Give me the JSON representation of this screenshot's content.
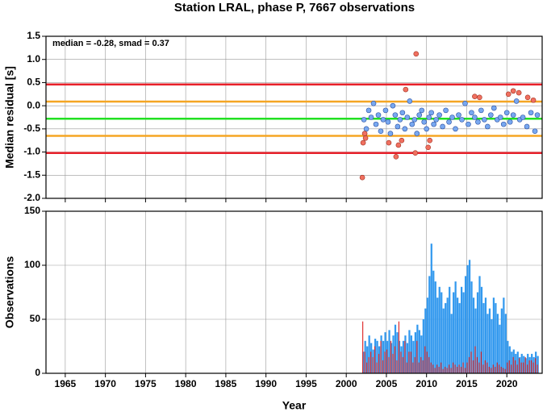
{
  "chart_data": [
    {
      "type": "scatter",
      "title": "Station LRAL, phase P, 7667 observations",
      "ylabel": "Median residual [s]",
      "annotation": "median = -0.28, smad = 0.37",
      "xlim": [
        1962.6,
        2024.4
      ],
      "xticks": [
        1965,
        1970,
        1975,
        1980,
        1985,
        1990,
        1995,
        2000,
        2005,
        2010,
        2015,
        2020
      ],
      "ylim": [
        -2,
        1.5
      ],
      "yticks": [
        {
          "value": -2,
          "label": "-2.0"
        },
        -1.5,
        {
          "value": -1,
          "label": "-1.0"
        },
        -0.5,
        {
          "value": 0,
          "label": "0.0"
        },
        0.5,
        {
          "value": 1,
          "label": "1.0"
        },
        1.5
      ],
      "grid": true,
      "lines": [
        {
          "value": 0.46,
          "color": "#e8202a"
        },
        {
          "value": 0.09,
          "color": "#f5a623"
        },
        {
          "value": -0.28,
          "color": "#22e022"
        },
        {
          "value": -0.65,
          "color": "#f5a623"
        },
        {
          "value": -1.02,
          "color": "#e8202a"
        }
      ],
      "series": [
        {
          "color": "#78a8f0",
          "x": [
            2002.2,
            2002.5,
            2002.8,
            2003.1,
            2003.4,
            2003.7,
            2004.0,
            2004.3,
            2004.6,
            2004.9,
            2005.2,
            2005.5,
            2005.8,
            2006.1,
            2006.4,
            2006.7,
            2007.0,
            2007.3,
            2007.6,
            2007.9,
            2008.2,
            2008.5,
            2008.8,
            2009.1,
            2009.4,
            2009.7,
            2010.0,
            2010.3,
            2010.6,
            2010.9,
            2011.2,
            2011.6,
            2012.0,
            2012.4,
            2012.8,
            2013.2,
            2013.6,
            2014.0,
            2014.4,
            2014.8,
            2015.2,
            2015.6,
            2016.0,
            2016.4,
            2016.8,
            2017.2,
            2017.6,
            2018.0,
            2018.4,
            2018.8,
            2019.2,
            2019.6,
            2020.0,
            2020.4,
            2020.8,
            2021.2,
            2021.6,
            2022.0,
            2022.5,
            2023.0,
            2023.5,
            2023.8
          ],
          "values": [
            -0.3,
            -0.5,
            -0.1,
            -0.25,
            0.05,
            -0.4,
            -0.2,
            -0.55,
            -0.3,
            -0.1,
            -0.35,
            -0.6,
            0.0,
            -0.2,
            -0.45,
            -0.3,
            -0.15,
            -0.5,
            -0.25,
            0.1,
            -0.4,
            -0.3,
            -0.6,
            -0.2,
            -0.1,
            -0.35,
            -0.5,
            -0.25,
            -0.15,
            -0.4,
            -0.3,
            -0.2,
            -0.45,
            -0.1,
            -0.35,
            -0.25,
            -0.5,
            -0.2,
            -0.3,
            0.05,
            -0.4,
            -0.15,
            -0.25,
            -0.35,
            -0.1,
            -0.3,
            -0.45,
            -0.2,
            -0.05,
            -0.3,
            -0.25,
            -0.4,
            -0.15,
            -0.35,
            -0.2,
            0.1,
            -0.3,
            -0.25,
            -0.45,
            -0.15,
            -0.55,
            -0.2
          ]
        },
        {
          "color": "#f07060",
          "x": [
            2002.0,
            2002.1,
            2002.4,
            2005.3,
            2006.2,
            2006.5,
            2006.9,
            2007.4,
            2008.6,
            2008.7,
            2010.2,
            2010.4,
            2016.0,
            2016.6,
            2020.2,
            2020.8,
            2021.5,
            2022.6,
            2023.3,
            2002.3
          ],
          "values": [
            -1.55,
            -0.8,
            -0.7,
            -0.8,
            -1.1,
            -0.85,
            -0.75,
            0.35,
            -1.02,
            1.12,
            -0.9,
            -0.75,
            0.2,
            0.18,
            0.25,
            0.32,
            0.28,
            0.18,
            0.12,
            -0.6
          ]
        }
      ]
    },
    {
      "type": "bar",
      "ylabel": "Observations",
      "xlabel": "Year",
      "xlim": [
        1962.6,
        2024.4
      ],
      "xticks": [
        1965,
        1970,
        1975,
        1980,
        1985,
        1990,
        1995,
        2000,
        2005,
        2010,
        2015,
        2020
      ],
      "ylim": [
        0,
        150
      ],
      "yticks": [
        0,
        50,
        100,
        150
      ],
      "grid": true,
      "x": [
        2002,
        2002.25,
        2002.5,
        2002.75,
        2003,
        2003.25,
        2003.5,
        2003.75,
        2004,
        2004.25,
        2004.5,
        2004.75,
        2005,
        2005.25,
        2005.5,
        2005.75,
        2006,
        2006.25,
        2006.5,
        2006.75,
        2007,
        2007.25,
        2007.5,
        2007.75,
        2008,
        2008.25,
        2008.5,
        2008.75,
        2009,
        2009.25,
        2009.5,
        2009.75,
        2010,
        2010.25,
        2010.5,
        2010.75,
        2011,
        2011.25,
        2011.5,
        2011.75,
        2012,
        2012.25,
        2012.5,
        2012.75,
        2013,
        2013.25,
        2013.5,
        2013.75,
        2014,
        2014.25,
        2014.5,
        2014.75,
        2015,
        2015.25,
        2015.5,
        2015.75,
        2016,
        2016.25,
        2016.5,
        2016.75,
        2017,
        2017.25,
        2017.5,
        2017.75,
        2018,
        2018.25,
        2018.5,
        2018.75,
        2019,
        2019.25,
        2019.5,
        2019.75,
        2020,
        2020.25,
        2020.5,
        2020.75,
        2021,
        2021.25,
        2021.5,
        2021.75,
        2022,
        2022.25,
        2022.5,
        2022.75,
        2023,
        2023.25,
        2023.5,
        2023.75
      ],
      "series": [
        {
          "color": "#3399ee",
          "values": [
            20,
            30,
            25,
            35,
            28,
            22,
            32,
            30,
            25,
            35,
            30,
            38,
            30,
            40,
            28,
            35,
            45,
            38,
            30,
            25,
            30,
            35,
            28,
            40,
            35,
            30,
            38,
            45,
            40,
            35,
            50,
            60,
            70,
            90,
            120,
            95,
            85,
            70,
            80,
            75,
            60,
            65,
            70,
            80,
            55,
            75,
            85,
            70,
            65,
            80,
            75,
            90,
            100,
            105,
            85,
            70,
            60,
            75,
            90,
            80,
            65,
            70,
            55,
            60,
            50,
            70,
            65,
            55,
            45,
            60,
            70,
            55,
            30,
            25,
            20,
            22,
            18,
            20,
            15,
            18,
            16,
            14,
            18,
            15,
            18,
            15,
            20,
            16
          ]
        },
        {
          "color": "#dd2222",
          "values": [
            48,
            20,
            10,
            15,
            20,
            15,
            25,
            10,
            18,
            30,
            12,
            20,
            22,
            15,
            30,
            18,
            25,
            12,
            48,
            20,
            15,
            30,
            10,
            20,
            20,
            10,
            15,
            30,
            10,
            15,
            12,
            25,
            20,
            15,
            10,
            8,
            5,
            8,
            6,
            10,
            4,
            6,
            5,
            8,
            5,
            10,
            8,
            6,
            8,
            6,
            10,
            5,
            10,
            15,
            20,
            12,
            25,
            15,
            10,
            20,
            8,
            12,
            10,
            6,
            5,
            8,
            6,
            10,
            8,
            6,
            5,
            4,
            10,
            12,
            8,
            15,
            12,
            8,
            14,
            10,
            10,
            15,
            8,
            12,
            12,
            10,
            14,
            8
          ]
        }
      ]
    }
  ]
}
